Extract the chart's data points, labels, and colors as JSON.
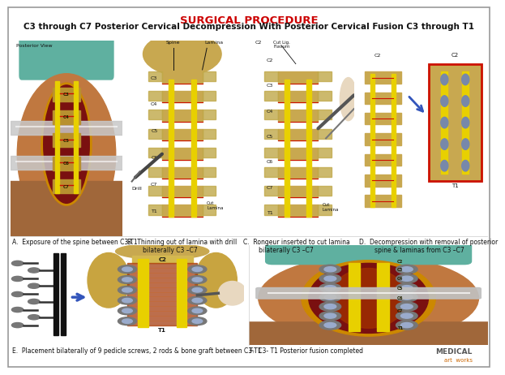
{
  "title_top": "SURGICAL PROCEDURE",
  "title_top_color": "#cc0000",
  "title_sub": "C3 through C7 Posterior Cervical Decompression With Posterior Cervical Fusion C3 through T1",
  "title_sub_color": "#111111",
  "title_fontsize": 9.5,
  "subtitle_fontsize": 7.5,
  "bg_color": "#ffffff",
  "border_color": "#999999",
  "panel_captions": [
    "A.  Exposure of the spine between C3-T1",
    "B.  Thinning out of lamina with drill\n        bilaterally C3 –C7",
    "C.  Rongeur inserted to cut lamina\n        bilaterally C3 –C7",
    "D.  Decompression with removal of posterior\n        spine & laminas from C3 –C7",
    "E.  Placement bilaterally of 9 pedicle screws, 2 rods & bone graft between C3-T1",
    "F.  C3- T1 Posterior fusion completed"
  ],
  "caption_fontsize": 5.5,
  "yellow_rod": "#e8d000",
  "red_incision": "#cc1100",
  "bone_color": "#c8a850",
  "skin_tan": "#c07840",
  "skin_brown": "#a0673a",
  "dark_red": "#7a1010",
  "screw_gray": "#888888",
  "black_rod": "#111111",
  "teal_drape": "#5fb0a0",
  "panel_A_bg": "#c8a070",
  "panel_B_bg": "#b8a455",
  "panel_C_bg": "#b8a455",
  "panel_D_bg": "#b8a455",
  "panel_E_bg": "#d0c070",
  "panel_F_bg": "#c8a070",
  "watermark1_color": "#555555",
  "watermark2_color": "#cc6600"
}
